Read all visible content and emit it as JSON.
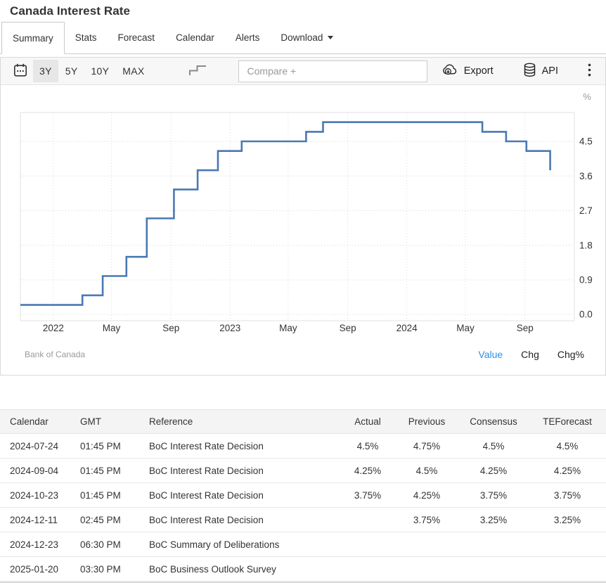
{
  "header": {
    "title": "Canada Interest Rate"
  },
  "tabs": [
    {
      "label": "Summary",
      "active": true
    },
    {
      "label": "Stats"
    },
    {
      "label": "Forecast"
    },
    {
      "label": "Calendar"
    },
    {
      "label": "Alerts"
    },
    {
      "label": "Download",
      "dropdown": true
    }
  ],
  "toolbar": {
    "calendar_icon": "calendar-icon",
    "ranges": [
      {
        "label": "3Y",
        "active": true
      },
      {
        "label": "5Y"
      },
      {
        "label": "10Y"
      },
      {
        "label": "MAX"
      }
    ],
    "step_icon": "step-line-icon",
    "compare_placeholder": "Compare +",
    "export_label": "Export",
    "export_icon": "cloud-download-icon",
    "api_label": "API",
    "api_icon": "database-icon",
    "menu_icon": "kebab-menu-icon"
  },
  "chart_data": {
    "type": "line",
    "step": true,
    "title": "Canada Interest Rate",
    "unit": "%",
    "line_color": "#4a78b3",
    "grid": true,
    "legend_position": "none",
    "x_range": [
      "2021-10-25",
      "2024-12-12"
    ],
    "y_range": [
      -0.16,
      5.25
    ],
    "y_ticks": [
      {
        "v": 0.0,
        "label": "0.0"
      },
      {
        "v": 0.9,
        "label": "0.9"
      },
      {
        "v": 1.8,
        "label": "1.8"
      },
      {
        "v": 2.7,
        "label": "2.7"
      },
      {
        "v": 3.6,
        "label": "3.6"
      },
      {
        "v": 4.5,
        "label": "4.5"
      }
    ],
    "x_ticks": [
      {
        "date": "2022-01-01",
        "label": "2022"
      },
      {
        "date": "2022-05-01",
        "label": "May"
      },
      {
        "date": "2022-09-01",
        "label": "Sep"
      },
      {
        "date": "2023-01-01",
        "label": "2023"
      },
      {
        "date": "2023-05-01",
        "label": "May"
      },
      {
        "date": "2023-09-01",
        "label": "Sep"
      },
      {
        "date": "2024-01-01",
        "label": "2024"
      },
      {
        "date": "2024-05-01",
        "label": "May"
      },
      {
        "date": "2024-09-01",
        "label": "Sep"
      }
    ],
    "series": [
      {
        "name": "Value",
        "points": [
          [
            "2021-10-25",
            0.25
          ],
          [
            "2022-03-02",
            0.5
          ],
          [
            "2022-04-13",
            1.0
          ],
          [
            "2022-06-01",
            1.5
          ],
          [
            "2022-07-13",
            2.5
          ],
          [
            "2022-09-07",
            3.25
          ],
          [
            "2022-10-26",
            3.75
          ],
          [
            "2022-12-07",
            4.25
          ],
          [
            "2023-01-25",
            4.5
          ],
          [
            "2023-06-07",
            4.75
          ],
          [
            "2023-07-12",
            5.0
          ],
          [
            "2024-06-05",
            4.75
          ],
          [
            "2024-07-24",
            4.5
          ],
          [
            "2024-09-04",
            4.25
          ],
          [
            "2024-10-23",
            3.75
          ]
        ]
      }
    ]
  },
  "chart_footer": {
    "source": "Bank of Canada",
    "links": [
      {
        "label": "Value",
        "active": true
      },
      {
        "label": "Chg"
      },
      {
        "label": "Chg%"
      }
    ]
  },
  "table": {
    "headers": [
      "Calendar",
      "GMT",
      "Reference",
      "Actual",
      "Previous",
      "Consensus",
      "TEForecast"
    ],
    "rows": [
      [
        "2024-07-24",
        "01:45 PM",
        "BoC Interest Rate Decision",
        "4.5%",
        "4.75%",
        "4.5%",
        "4.5%"
      ],
      [
        "2024-09-04",
        "01:45 PM",
        "BoC Interest Rate Decision",
        "4.25%",
        "4.5%",
        "4.25%",
        "4.25%"
      ],
      [
        "2024-10-23",
        "01:45 PM",
        "BoC Interest Rate Decision",
        "3.75%",
        "4.25%",
        "3.75%",
        "3.75%"
      ],
      [
        "2024-12-11",
        "02:45 PM",
        "BoC Interest Rate Decision",
        "",
        "3.75%",
        "3.25%",
        "3.25%"
      ],
      [
        "2024-12-23",
        "06:30 PM",
        "BoC Summary of Deliberations",
        "",
        "",
        "",
        ""
      ],
      [
        "2025-01-20",
        "03:30 PM",
        "BoC Business Outlook Survey",
        "",
        "",
        "",
        ""
      ]
    ]
  }
}
